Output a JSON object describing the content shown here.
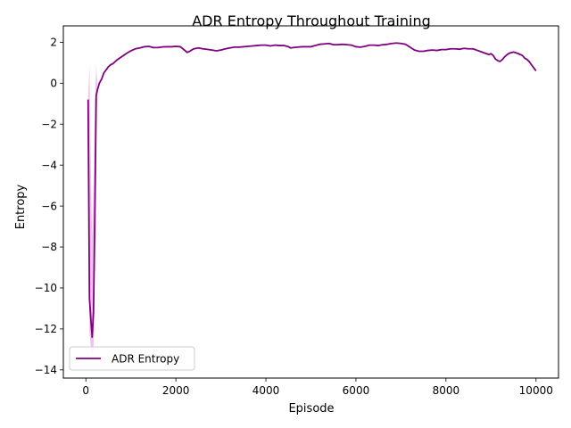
{
  "chart_data": {
    "type": "line",
    "title": "ADR Entropy Throughout Training",
    "xlabel": "Episode",
    "ylabel": "Entropy",
    "xlim": [
      -500,
      10500
    ],
    "ylim": [
      -14.4,
      2.8
    ],
    "xticks": [
      0,
      2000,
      4000,
      6000,
      8000,
      10000
    ],
    "yticks": [
      -14,
      -12,
      -10,
      -8,
      -6,
      -4,
      -2,
      0,
      2
    ],
    "grid": false,
    "legend": {
      "position": "lower-left",
      "entries": [
        "ADR Entropy"
      ]
    },
    "series": [
      {
        "name": "ADR Entropy",
        "color": "#800080",
        "band_color": "#e8b4e6",
        "x": [
          50,
          80,
          110,
          140,
          170,
          200,
          230,
          260,
          300,
          350,
          400,
          450,
          500,
          550,
          600,
          650,
          700,
          800,
          900,
          1000,
          1100,
          1200,
          1300,
          1400,
          1500,
          1600,
          1700,
          1800,
          1900,
          2000,
          2100,
          2200,
          2250,
          2300,
          2350,
          2400,
          2500,
          2600,
          2700,
          2800,
          2900,
          3000,
          3100,
          3200,
          3300,
          3400,
          3500,
          3600,
          3700,
          3800,
          3900,
          4000,
          4100,
          4200,
          4300,
          4400,
          4500,
          4550,
          4600,
          4700,
          4800,
          4900,
          5000,
          5100,
          5200,
          5300,
          5400,
          5500,
          5600,
          5700,
          5800,
          5900,
          6000,
          6100,
          6200,
          6300,
          6400,
          6500,
          6600,
          6700,
          6800,
          6900,
          7000,
          7100,
          7200,
          7300,
          7400,
          7500,
          7600,
          7700,
          7800,
          7900,
          8000,
          8100,
          8200,
          8300,
          8400,
          8500,
          8600,
          8700,
          8800,
          8900,
          8950,
          9000,
          9050,
          9100,
          9150,
          9200,
          9250,
          9300,
          9350,
          9400,
          9500,
          9600,
          9700,
          9750,
          9800,
          9850,
          9900,
          9950,
          10000
        ],
        "y": [
          -0.8,
          -10.5,
          -11.5,
          -12.4,
          -11.2,
          -6.5,
          -0.6,
          -0.3,
          0.0,
          0.2,
          0.5,
          0.65,
          0.8,
          0.9,
          0.95,
          1.05,
          1.15,
          1.3,
          1.45,
          1.58,
          1.68,
          1.72,
          1.78,
          1.8,
          1.74,
          1.74,
          1.77,
          1.78,
          1.78,
          1.8,
          1.78,
          1.6,
          1.5,
          1.55,
          1.62,
          1.68,
          1.72,
          1.68,
          1.65,
          1.62,
          1.58,
          1.62,
          1.68,
          1.72,
          1.76,
          1.76,
          1.78,
          1.8,
          1.82,
          1.84,
          1.86,
          1.86,
          1.82,
          1.86,
          1.84,
          1.84,
          1.78,
          1.72,
          1.74,
          1.76,
          1.78,
          1.78,
          1.78,
          1.84,
          1.9,
          1.92,
          1.94,
          1.88,
          1.88,
          1.9,
          1.88,
          1.86,
          1.78,
          1.76,
          1.8,
          1.86,
          1.86,
          1.84,
          1.88,
          1.9,
          1.94,
          1.96,
          1.94,
          1.9,
          1.76,
          1.62,
          1.56,
          1.56,
          1.6,
          1.62,
          1.6,
          1.64,
          1.64,
          1.68,
          1.68,
          1.66,
          1.7,
          1.68,
          1.68,
          1.6,
          1.52,
          1.44,
          1.4,
          1.44,
          1.35,
          1.18,
          1.1,
          1.06,
          1.15,
          1.28,
          1.38,
          1.46,
          1.52,
          1.45,
          1.35,
          1.22,
          1.16,
          1.05,
          0.9,
          0.75,
          0.6
        ],
        "band_low": [
          -0.8,
          -12.2,
          -12.8,
          -13.3,
          -12.9,
          -8.5,
          -0.7,
          -0.3,
          0.0,
          0.2,
          0.5,
          0.65,
          0.8,
          0.9,
          0.95,
          1.05,
          1.15,
          1.3,
          1.45,
          1.58,
          1.68,
          1.72,
          1.78,
          1.8,
          1.74,
          1.74,
          1.77,
          1.78,
          1.78,
          1.8,
          1.78,
          1.6,
          1.5,
          1.55,
          1.62,
          1.68,
          1.72,
          1.68,
          1.65,
          1.62,
          1.58,
          1.62,
          1.68,
          1.72,
          1.76,
          1.76,
          1.78,
          1.8,
          1.82,
          1.84,
          1.86,
          1.86,
          1.82,
          1.86,
          1.84,
          1.84,
          1.78,
          1.72,
          1.74,
          1.76,
          1.78,
          1.78,
          1.78,
          1.84,
          1.9,
          1.92,
          1.94,
          1.88,
          1.88,
          1.9,
          1.88,
          1.86,
          1.78,
          1.76,
          1.8,
          1.86,
          1.86,
          1.84,
          1.88,
          1.9,
          1.94,
          1.96,
          1.94,
          1.9,
          1.76,
          1.62,
          1.56,
          1.56,
          1.6,
          1.62,
          1.6,
          1.64,
          1.64,
          1.68,
          1.68,
          1.66,
          1.7,
          1.68,
          1.68,
          1.6,
          1.52,
          1.44,
          1.4,
          1.44,
          1.35,
          1.18,
          1.1,
          1.06,
          1.15,
          1.28,
          1.38,
          1.46,
          1.52,
          1.45,
          1.35,
          1.22,
          1.16,
          1.05,
          0.9,
          0.75,
          0.6
        ],
        "band_high": [
          -0.8,
          0.9,
          -4.0,
          -7.5,
          -5.0,
          -1.0,
          0.9,
          -0.3,
          0.0,
          0.2,
          0.5,
          0.65,
          0.8,
          0.9,
          0.95,
          1.05,
          1.15,
          1.3,
          1.45,
          1.58,
          1.68,
          1.72,
          1.78,
          1.8,
          1.74,
          1.74,
          1.77,
          1.78,
          1.78,
          1.8,
          1.78,
          1.6,
          1.5,
          1.55,
          1.62,
          1.68,
          1.72,
          1.68,
          1.65,
          1.62,
          1.58,
          1.62,
          1.68,
          1.72,
          1.76,
          1.76,
          1.78,
          1.8,
          1.82,
          1.84,
          1.86,
          1.86,
          1.82,
          1.86,
          1.84,
          1.84,
          1.78,
          1.72,
          1.74,
          1.76,
          1.78,
          1.78,
          1.78,
          1.84,
          1.9,
          1.92,
          1.94,
          1.88,
          1.88,
          1.9,
          1.88,
          1.86,
          1.78,
          1.76,
          1.8,
          1.86,
          1.86,
          1.84,
          1.88,
          1.9,
          1.94,
          1.96,
          1.94,
          1.9,
          1.76,
          1.62,
          1.56,
          1.56,
          1.6,
          1.62,
          1.6,
          1.64,
          1.64,
          1.68,
          1.68,
          1.66,
          1.7,
          1.68,
          1.68,
          1.6,
          1.52,
          1.44,
          1.4,
          1.44,
          1.35,
          1.18,
          1.1,
          1.06,
          1.15,
          1.28,
          1.38,
          1.46,
          1.52,
          1.45,
          1.35,
          1.22,
          1.16,
          1.05,
          0.9,
          0.75,
          0.6
        ]
      }
    ]
  }
}
